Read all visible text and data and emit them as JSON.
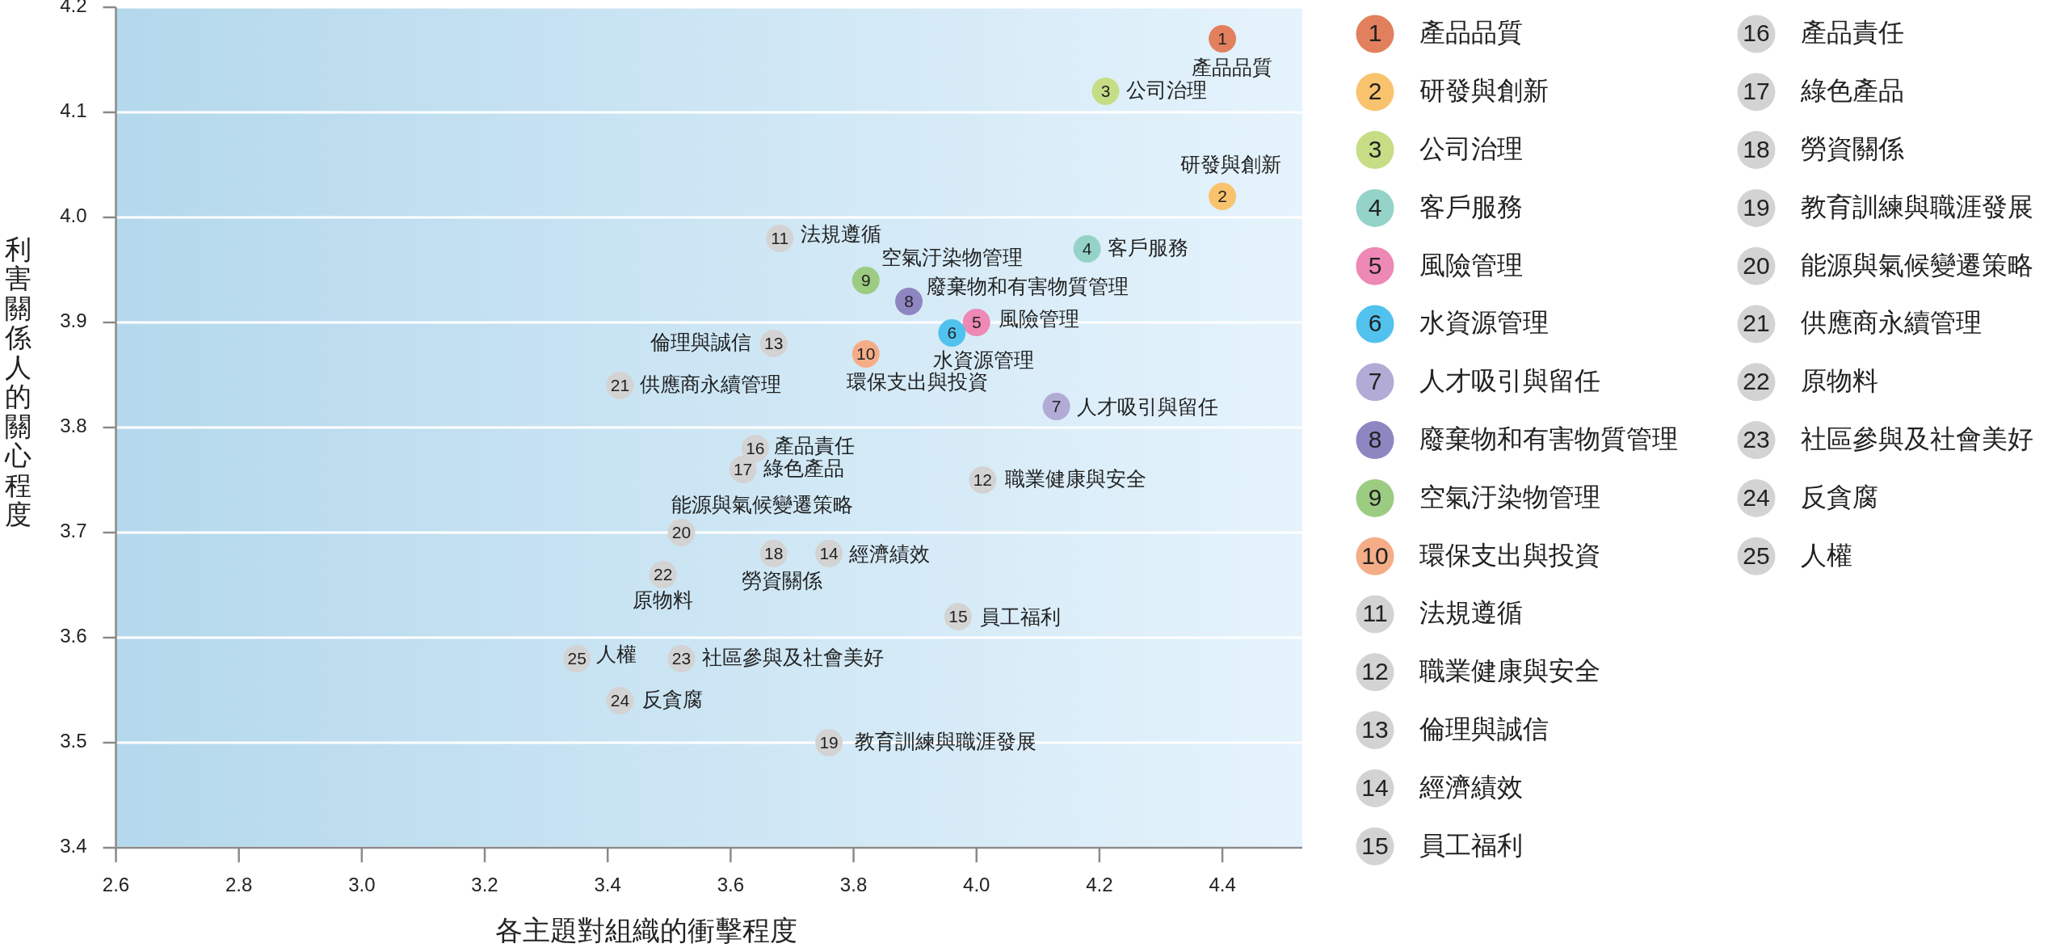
{
  "chart_data": {
    "type": "scatter",
    "xlabel": "各主題對組織的衝擊程度",
    "ylabel": "利害關係人的關心程度",
    "xlim": [
      2.6,
      4.53
    ],
    "ylim": [
      3.4,
      4.2
    ],
    "xticks": [
      2.6,
      2.8,
      {
        "value": 3,
        "label": "3.0"
      },
      3.2,
      3.4,
      3.6,
      3.8,
      {
        "value": 4,
        "label": "4.0"
      },
      4.2,
      4.4
    ],
    "yticks": [
      3.4,
      3.5,
      3.6,
      3.7,
      3.8,
      3.9,
      {
        "value": 4,
        "label": "4.0"
      },
      4.1,
      4.2
    ],
    "grid": "y",
    "legend": "right",
    "marker": "circle",
    "series": [
      {
        "name": "產品品質",
        "color": "#e2805e",
        "x": [
          4.4
        ],
        "values": [
          4.17
        ]
      },
      {
        "name": "研發與創新",
        "color": "#f9c36e",
        "x": [
          4.4
        ],
        "values": [
          4.02
        ]
      },
      {
        "name": "公司治理",
        "color": "#c6dd86",
        "x": [
          4.21
        ],
        "values": [
          4.12
        ]
      },
      {
        "name": "客戶服務",
        "color": "#95d3c9",
        "x": [
          4.18
        ],
        "values": [
          3.97
        ]
      },
      {
        "name": "風險管理",
        "color": "#ee88b4",
        "x": [
          4.0
        ],
        "values": [
          3.9
        ]
      },
      {
        "name": "水資源管理",
        "color": "#51c2ee",
        "x": [
          3.96
        ],
        "values": [
          3.89
        ]
      },
      {
        "name": "人才吸引與留任",
        "color": "#b1abd6",
        "x": [
          4.13
        ],
        "values": [
          3.82
        ]
      },
      {
        "name": "廢棄物和有害物質管理",
        "color": "#8e86c1",
        "x": [
          3.89
        ],
        "values": [
          3.92
        ]
      },
      {
        "name": "空氣汙染物管理",
        "color": "#9ccb82",
        "x": [
          3.82
        ],
        "values": [
          3.94
        ]
      },
      {
        "name": "環保支出與投資",
        "color": "#f5ad88",
        "x": [
          3.82
        ],
        "values": [
          3.87
        ]
      },
      {
        "name": "法規遵循",
        "color": "#d3d3d3",
        "x": [
          3.68
        ],
        "values": [
          3.98
        ]
      },
      {
        "name": "職業健康與安全",
        "color": "#d3d3d3",
        "x": [
          4.01
        ],
        "values": [
          3.75
        ]
      },
      {
        "name": "倫理與誠信",
        "color": "#d3d3d3",
        "x": [
          3.67
        ],
        "values": [
          3.88
        ]
      },
      {
        "name": "經濟績效",
        "color": "#d3d3d3",
        "x": [
          3.76
        ],
        "values": [
          3.68
        ]
      },
      {
        "name": "員工福利",
        "color": "#d3d3d3",
        "x": [
          3.97
        ],
        "values": [
          3.62
        ]
      },
      {
        "name": "產品責任",
        "color": "#d3d3d3",
        "x": [
          3.64
        ],
        "values": [
          3.78
        ]
      },
      {
        "name": "綠色產品",
        "color": "#d3d3d3",
        "x": [
          3.62
        ],
        "values": [
          3.76
        ]
      },
      {
        "name": "勞資關係",
        "color": "#d3d3d3",
        "x": [
          3.67
        ],
        "values": [
          3.68
        ]
      },
      {
        "name": "教育訓練與職涯發展",
        "color": "#d3d3d3",
        "x": [
          3.76
        ],
        "values": [
          3.5
        ]
      },
      {
        "name": "能源與氣候變遷策略",
        "color": "#d3d3d3",
        "x": [
          3.52
        ],
        "values": [
          3.7
        ]
      },
      {
        "name": "供應商永續管理",
        "color": "#d3d3d3",
        "x": [
          3.42
        ],
        "values": [
          3.84
        ]
      },
      {
        "name": "原物料",
        "color": "#d3d3d3",
        "x": [
          3.49
        ],
        "values": [
          3.66
        ]
      },
      {
        "name": "社區參與及社會美好",
        "color": "#d3d3d3",
        "x": [
          3.52
        ],
        "values": [
          3.58
        ]
      },
      {
        "name": "反貪腐",
        "color": "#d3d3d3",
        "x": [
          3.42
        ],
        "values": [
          3.54
        ]
      },
      {
        "name": "人權",
        "color": "#d3d3d3",
        "x": [
          3.35
        ],
        "values": [
          3.58
        ]
      }
    ],
    "annotations": [
      {
        "text": "1",
        "x": 4.4,
        "y": 4.17
      },
      {
        "text": "2",
        "x": 4.4,
        "y": 4.02
      },
      {
        "text": "3",
        "x": 4.21,
        "y": 4.12
      },
      {
        "text": "4",
        "x": 4.18,
        "y": 3.97
      },
      {
        "text": "5",
        "x": 4.0,
        "y": 3.9
      },
      {
        "text": "6",
        "x": 3.96,
        "y": 3.89
      },
      {
        "text": "7",
        "x": 4.13,
        "y": 3.82
      },
      {
        "text": "8",
        "x": 3.89,
        "y": 3.92
      },
      {
        "text": "9",
        "x": 3.82,
        "y": 3.94
      },
      {
        "text": "10",
        "x": 3.82,
        "y": 3.87
      },
      {
        "text": "11",
        "x": 3.68,
        "y": 3.98
      },
      {
        "text": "12",
        "x": 4.01,
        "y": 3.75
      },
      {
        "text": "13",
        "x": 3.67,
        "y": 3.88
      },
      {
        "text": "14",
        "x": 3.76,
        "y": 3.68
      },
      {
        "text": "15",
        "x": 3.97,
        "y": 3.62
      },
      {
        "text": "16",
        "x": 3.64,
        "y": 3.78
      },
      {
        "text": "17",
        "x": 3.62,
        "y": 3.76
      },
      {
        "text": "18",
        "x": 3.67,
        "y": 3.68
      },
      {
        "text": "19",
        "x": 3.76,
        "y": 3.5
      },
      {
        "text": "20",
        "x": 3.52,
        "y": 3.7
      },
      {
        "text": "21",
        "x": 3.42,
        "y": 3.84
      },
      {
        "text": "22",
        "x": 3.49,
        "y": 3.66
      },
      {
        "text": "23",
        "x": 3.52,
        "y": 3.58
      },
      {
        "text": "24",
        "x": 3.42,
        "y": 3.54
      },
      {
        "text": "25",
        "x": 3.35,
        "y": 3.58
      }
    ]
  }
}
